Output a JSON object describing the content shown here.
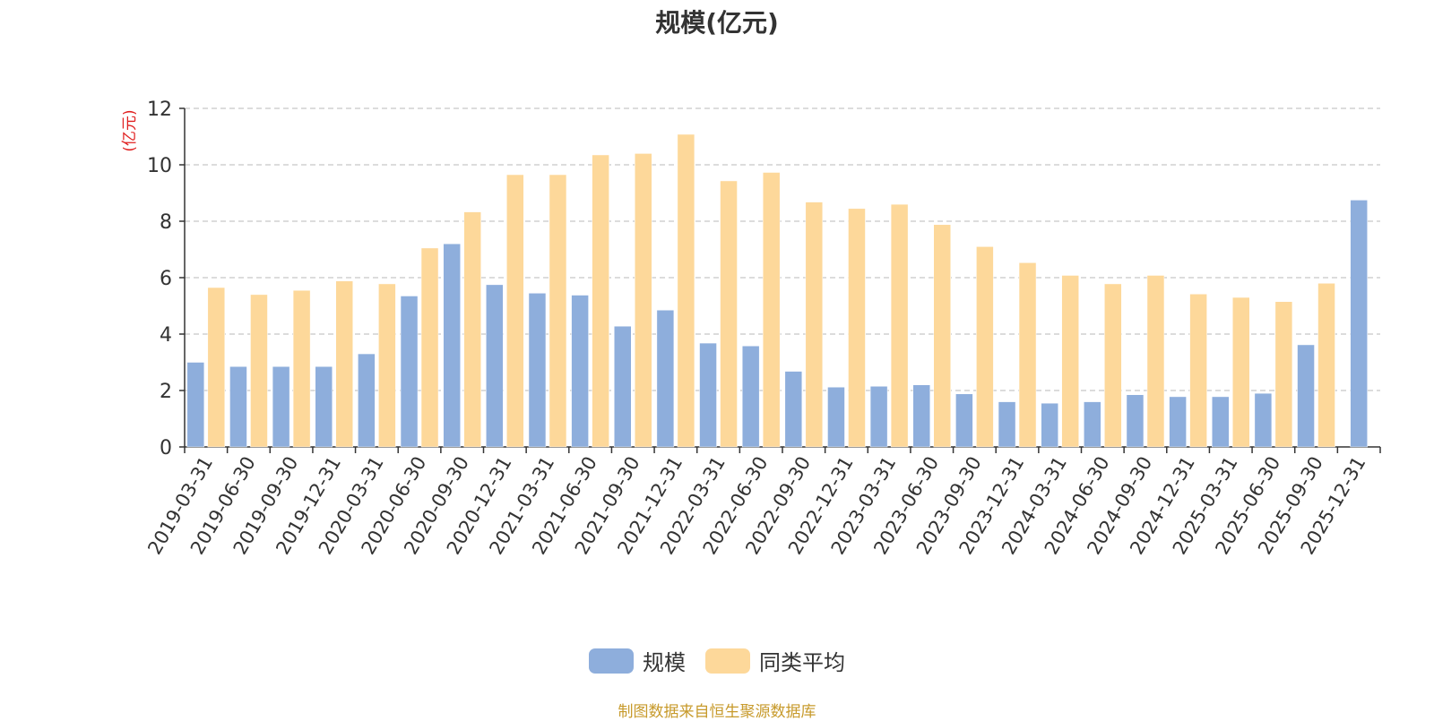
{
  "chart_data": {
    "type": "bar",
    "title": "规模(亿元)",
    "ylabel": "(亿元)",
    "ylim": [
      0,
      12
    ],
    "yticks": [
      "0",
      "2",
      "4",
      "6",
      "8",
      "10",
      "12"
    ],
    "grid": true,
    "legend_position": "bottom-center",
    "categories": [
      "2019-03-31",
      "2019-06-30",
      "2019-09-30",
      "2019-12-31",
      "2020-03-31",
      "2020-06-30",
      "2020-09-30",
      "2020-12-31",
      "2021-03-31",
      "2021-06-30",
      "2021-09-30",
      "2021-12-31",
      "2022-03-31",
      "2022-06-30",
      "2022-09-30",
      "2022-12-31",
      "2023-03-31",
      "2023-06-30",
      "2023-09-30",
      "2023-12-31",
      "2024-03-31",
      "2024-06-30",
      "2024-09-30",
      "2024-12-31",
      "2025-03-31",
      "2025-06-30",
      "2025-09-30",
      "2025-12-31"
    ],
    "series": [
      {
        "name": "规模",
        "color": "#8eaedc",
        "values": [
          3.0,
          2.85,
          2.85,
          2.85,
          3.3,
          5.35,
          7.2,
          5.75,
          5.45,
          5.38,
          4.28,
          4.85,
          3.68,
          3.58,
          2.68,
          2.12,
          2.15,
          2.2,
          1.88,
          1.6,
          1.55,
          1.6,
          1.85,
          1.78,
          1.78,
          1.9,
          3.62,
          8.75
        ]
      },
      {
        "name": "同类平均",
        "color": "#fdd89a",
        "values": [
          5.65,
          5.4,
          5.55,
          5.88,
          5.78,
          7.05,
          8.33,
          9.65,
          9.65,
          10.35,
          10.4,
          11.08,
          9.43,
          9.73,
          8.68,
          8.45,
          8.6,
          7.88,
          7.1,
          6.53,
          6.08,
          5.78,
          6.08,
          5.42,
          5.3,
          5.15,
          5.8,
          null
        ]
      }
    ]
  },
  "footer": {
    "source": "制图数据来自恒生聚源数据库"
  }
}
